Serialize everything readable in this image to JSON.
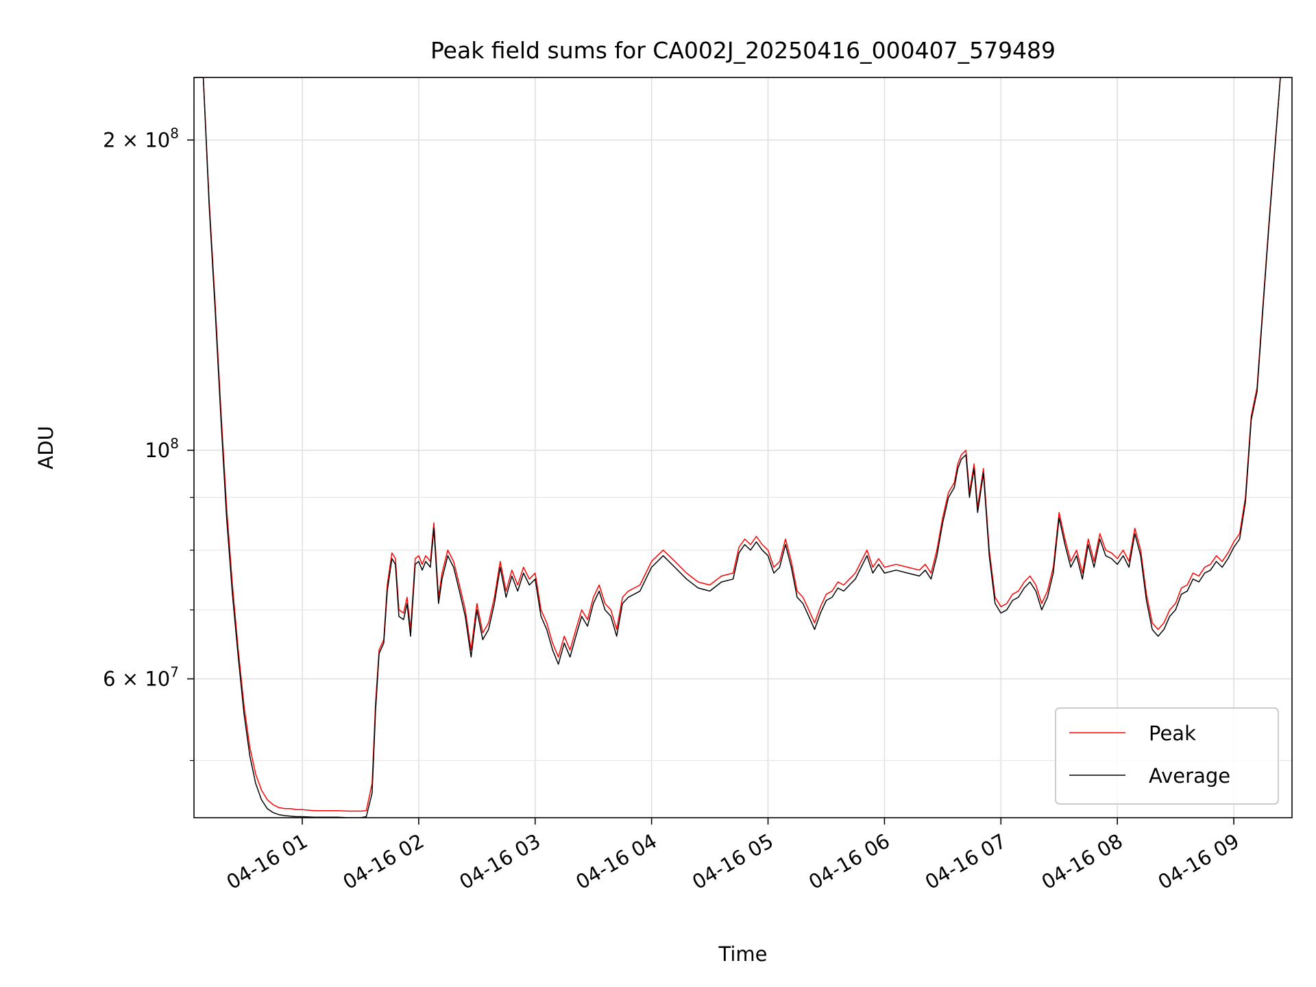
{
  "chart_data": {
    "type": "line",
    "title": "Peak field sums for CA002J_20250416_000407_579489",
    "xlabel": "Time",
    "ylabel": "ADU",
    "yscale": "log",
    "ylim": [
      44000000,
      230000000
    ],
    "xlim": [
      0.07,
      9.5
    ],
    "grid": true,
    "legend_position": "lower-right",
    "x_ticks": [
      {
        "value": 1,
        "label": "04-16 01"
      },
      {
        "value": 2,
        "label": "04-16 02"
      },
      {
        "value": 3,
        "label": "04-16 03"
      },
      {
        "value": 4,
        "label": "04-16 04"
      },
      {
        "value": 5,
        "label": "04-16 05"
      },
      {
        "value": 6,
        "label": "04-16 06"
      },
      {
        "value": 7,
        "label": "04-16 07"
      },
      {
        "value": 8,
        "label": "04-16 08"
      },
      {
        "value": 9,
        "label": "04-16 09"
      }
    ],
    "y_major_ticks": [
      {
        "value": 200000000,
        "base": "2 × 10",
        "exp": "8"
      },
      {
        "value": 100000000,
        "base": "10",
        "exp": "8"
      },
      {
        "value": 60000000,
        "base": "6 × 10",
        "exp": "7"
      }
    ],
    "y_minor_ticks": [
      50000000,
      70000000,
      80000000,
      90000000
    ],
    "series": [
      {
        "name": "Peak",
        "color": "#ff0000",
        "x": [
          0.07,
          0.15,
          0.2,
          0.25,
          0.3,
          0.35,
          0.4,
          0.45,
          0.5,
          0.55,
          0.6,
          0.65,
          0.7,
          0.75,
          0.8,
          0.85,
          0.9,
          0.95,
          1.0,
          1.1,
          1.2,
          1.3,
          1.4,
          1.5,
          1.55,
          1.6,
          1.63,
          1.66,
          1.7,
          1.73,
          1.77,
          1.8,
          1.83,
          1.87,
          1.9,
          1.93,
          1.97,
          2.0,
          2.03,
          2.06,
          2.1,
          2.13,
          2.17,
          2.2,
          2.25,
          2.3,
          2.35,
          2.4,
          2.45,
          2.5,
          2.55,
          2.6,
          2.65,
          2.7,
          2.75,
          2.8,
          2.85,
          2.9,
          2.95,
          3.0,
          3.05,
          3.1,
          3.15,
          3.2,
          3.25,
          3.3,
          3.35,
          3.4,
          3.45,
          3.5,
          3.55,
          3.6,
          3.65,
          3.7,
          3.75,
          3.8,
          3.9,
          4.0,
          4.1,
          4.2,
          4.3,
          4.4,
          4.5,
          4.6,
          4.7,
          4.75,
          4.8,
          4.85,
          4.9,
          4.95,
          5.0,
          5.05,
          5.1,
          5.15,
          5.2,
          5.25,
          5.3,
          5.35,
          5.4,
          5.45,
          5.5,
          5.55,
          5.6,
          5.65,
          5.7,
          5.75,
          5.8,
          5.85,
          5.9,
          5.95,
          6.0,
          6.1,
          6.2,
          6.3,
          6.35,
          6.4,
          6.45,
          6.5,
          6.55,
          6.6,
          6.63,
          6.66,
          6.7,
          6.73,
          6.77,
          6.8,
          6.85,
          6.9,
          6.95,
          7.0,
          7.05,
          7.1,
          7.15,
          7.2,
          7.25,
          7.3,
          7.35,
          7.4,
          7.45,
          7.5,
          7.55,
          7.6,
          7.65,
          7.7,
          7.75,
          7.8,
          7.85,
          7.9,
          7.95,
          8.0,
          8.05,
          8.1,
          8.15,
          8.2,
          8.25,
          8.3,
          8.35,
          8.4,
          8.45,
          8.5,
          8.55,
          8.6,
          8.65,
          8.7,
          8.75,
          8.8,
          8.85,
          8.9,
          8.95,
          9.0,
          9.05,
          9.1,
          9.15,
          9.2,
          9.25,
          9.3,
          9.35,
          9.4
        ],
        "y": [
          230000000,
          230000000,
          175000000,
          140000000,
          110000000,
          88000000,
          74000000,
          64000000,
          56500000,
          51500000,
          48500000,
          46800000,
          45800000,
          45300000,
          45000000,
          44900000,
          44900000,
          44800000,
          44800000,
          44700000,
          44700000,
          44700000,
          44650000,
          44650000,
          44700000,
          47500000,
          57000000,
          64000000,
          65500000,
          74000000,
          79500000,
          78500000,
          70000000,
          69500000,
          72000000,
          67000000,
          78500000,
          79000000,
          77500000,
          79000000,
          78000000,
          85000000,
          72000000,
          76000000,
          80000000,
          78000000,
          74000000,
          70000000,
          64000000,
          71000000,
          66500000,
          68000000,
          72000000,
          78000000,
          73000000,
          76500000,
          74000000,
          77000000,
          75000000,
          76000000,
          70000000,
          68000000,
          65000000,
          63000000,
          66000000,
          64000000,
          67000000,
          70000000,
          68500000,
          72000000,
          74000000,
          71000000,
          70000000,
          67000000,
          72000000,
          73000000,
          74000000,
          78000000,
          80000000,
          78000000,
          76000000,
          74500000,
          74000000,
          75500000,
          76000000,
          80500000,
          82000000,
          81000000,
          82500000,
          81000000,
          80000000,
          77000000,
          78000000,
          82000000,
          78000000,
          73000000,
          72000000,
          70000000,
          68000000,
          70500000,
          72500000,
          73000000,
          74500000,
          74000000,
          75000000,
          76000000,
          78000000,
          80000000,
          77000000,
          78500000,
          77000000,
          77500000,
          77000000,
          76500000,
          77500000,
          76000000,
          80000000,
          86000000,
          91000000,
          93000000,
          97000000,
          99000000,
          100000000,
          91000000,
          97000000,
          88000000,
          96000000,
          80000000,
          72000000,
          70500000,
          71000000,
          72500000,
          73000000,
          74500000,
          75500000,
          74000000,
          71000000,
          73000000,
          77000000,
          87000000,
          82000000,
          78000000,
          80000000,
          76000000,
          82000000,
          78000000,
          83000000,
          80000000,
          79500000,
          78500000,
          80000000,
          78000000,
          84000000,
          80000000,
          72500000,
          68000000,
          67000000,
          68000000,
          70000000,
          71000000,
          73500000,
          74000000,
          76000000,
          75500000,
          77000000,
          77500000,
          79000000,
          78000000,
          79500000,
          81500000,
          83000000,
          90000000,
          108000000,
          115000000,
          138000000,
          165000000,
          195000000,
          230000000
        ]
      },
      {
        "name": "Average",
        "color": "#000000",
        "x": [
          0.07,
          0.15,
          0.2,
          0.25,
          0.3,
          0.35,
          0.4,
          0.45,
          0.5,
          0.55,
          0.6,
          0.65,
          0.7,
          0.75,
          0.8,
          0.85,
          0.9,
          0.95,
          1.0,
          1.1,
          1.2,
          1.3,
          1.4,
          1.5,
          1.55,
          1.6,
          1.63,
          1.66,
          1.7,
          1.73,
          1.77,
          1.8,
          1.83,
          1.87,
          1.9,
          1.93,
          1.97,
          2.0,
          2.03,
          2.06,
          2.1,
          2.13,
          2.17,
          2.2,
          2.25,
          2.3,
          2.35,
          2.4,
          2.45,
          2.5,
          2.55,
          2.6,
          2.65,
          2.7,
          2.75,
          2.8,
          2.85,
          2.9,
          2.95,
          3.0,
          3.05,
          3.1,
          3.15,
          3.2,
          3.25,
          3.3,
          3.35,
          3.4,
          3.45,
          3.5,
          3.55,
          3.6,
          3.65,
          3.7,
          3.75,
          3.8,
          3.9,
          4.0,
          4.1,
          4.2,
          4.3,
          4.4,
          4.5,
          4.6,
          4.7,
          4.75,
          4.8,
          4.85,
          4.9,
          4.95,
          5.0,
          5.05,
          5.1,
          5.15,
          5.2,
          5.25,
          5.3,
          5.35,
          5.4,
          5.45,
          5.5,
          5.55,
          5.6,
          5.65,
          5.7,
          5.75,
          5.8,
          5.85,
          5.9,
          5.95,
          6.0,
          6.1,
          6.2,
          6.3,
          6.35,
          6.4,
          6.45,
          6.5,
          6.55,
          6.6,
          6.63,
          6.66,
          6.7,
          6.73,
          6.77,
          6.8,
          6.85,
          6.9,
          6.95,
          7.0,
          7.05,
          7.1,
          7.15,
          7.2,
          7.25,
          7.3,
          7.35,
          7.4,
          7.45,
          7.5,
          7.55,
          7.6,
          7.65,
          7.7,
          7.75,
          7.8,
          7.85,
          7.9,
          7.95,
          8.0,
          8.05,
          8.1,
          8.15,
          8.2,
          8.25,
          8.3,
          8.35,
          8.4,
          8.45,
          8.5,
          8.55,
          8.6,
          8.65,
          8.7,
          8.75,
          8.8,
          8.85,
          8.9,
          8.95,
          9.0,
          9.05,
          9.1,
          9.15,
          9.2,
          9.25,
          9.3,
          9.35,
          9.4
        ],
        "y": [
          230000000,
          230000000,
          173000000,
          138000000,
          108000000,
          86000000,
          72500000,
          63000000,
          55500000,
          50500000,
          47500000,
          45800000,
          44900000,
          44500000,
          44300000,
          44200000,
          44150000,
          44100000,
          44100000,
          44050000,
          44050000,
          44050000,
          44000000,
          44000000,
          44100000,
          46500000,
          56000000,
          63500000,
          65000000,
          73000000,
          78500000,
          77500000,
          69000000,
          68500000,
          71000000,
          66000000,
          77500000,
          78000000,
          76500000,
          78000000,
          77000000,
          84000000,
          71000000,
          75000000,
          79000000,
          77000000,
          73000000,
          69000000,
          63000000,
          70000000,
          65500000,
          67000000,
          71000000,
          77000000,
          72000000,
          75500000,
          73000000,
          76000000,
          74000000,
          75000000,
          69000000,
          67000000,
          64000000,
          62000000,
          65000000,
          63000000,
          66000000,
          69000000,
          67500000,
          71000000,
          73000000,
          70000000,
          69000000,
          66000000,
          71000000,
          72000000,
          73000000,
          77000000,
          79000000,
          77000000,
          75000000,
          73500000,
          73000000,
          74500000,
          75000000,
          79500000,
          81000000,
          80000000,
          81500000,
          80000000,
          79000000,
          76000000,
          77000000,
          81000000,
          77000000,
          72000000,
          71000000,
          69000000,
          67000000,
          69500000,
          71500000,
          72000000,
          73500000,
          73000000,
          74000000,
          75000000,
          77000000,
          79000000,
          76000000,
          77500000,
          76000000,
          76500000,
          76000000,
          75500000,
          76500000,
          75000000,
          79000000,
          85000000,
          90000000,
          92000000,
          96000000,
          98000000,
          99000000,
          90000000,
          96000000,
          87000000,
          95000000,
          79000000,
          71000000,
          69500000,
          70000000,
          71500000,
          72000000,
          73500000,
          74500000,
          73000000,
          70000000,
          72000000,
          76000000,
          86000000,
          81000000,
          77000000,
          79000000,
          75000000,
          81000000,
          77000000,
          82000000,
          79000000,
          78500000,
          77500000,
          79000000,
          77000000,
          83000000,
          79000000,
          71500000,
          67000000,
          66000000,
          67000000,
          69000000,
          70000000,
          72500000,
          73000000,
          75000000,
          74500000,
          76000000,
          76500000,
          78000000,
          77000000,
          78500000,
          80500000,
          82000000,
          89000000,
          107000000,
          114000000,
          137000000,
          164000000,
          194000000,
          230000000
        ]
      }
    ]
  }
}
